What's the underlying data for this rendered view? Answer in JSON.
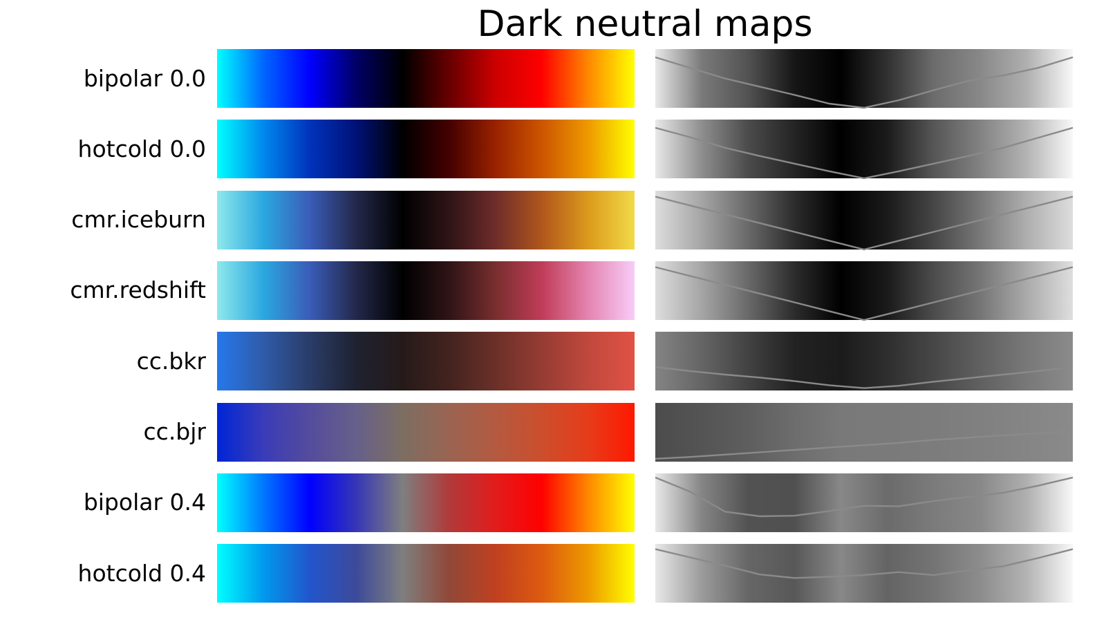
{
  "chart_data": {
    "type": "heatmap",
    "title": "Dark neutral maps",
    "maps": [
      {
        "name": "bipolar 0.0",
        "colors": [
          "#00ffff",
          "#0066ff",
          "#0000ff",
          "#000066",
          "#000000",
          "#660000",
          "#cc0000",
          "#ff0000",
          "#ff8800",
          "#ffff00"
        ],
        "lightness": [
          0.86,
          0.68,
          0.5,
          0.36,
          0.22,
          0.07,
          0.0,
          0.13,
          0.3,
          0.46,
          0.55,
          0.68,
          0.86
        ]
      },
      {
        "name": "hotcold 0.0",
        "colors": [
          "#00ffff",
          "#0088ee",
          "#0033bb",
          "#001177",
          "#000000",
          "#440000",
          "#992200",
          "#cc5500",
          "#ee9900",
          "#ffff00"
        ],
        "lightness": [
          0.86,
          0.7,
          0.52,
          0.38,
          0.25,
          0.12,
          0.0,
          0.12,
          0.25,
          0.38,
          0.52,
          0.69,
          0.86
        ]
      },
      {
        "name": "cmr.iceburn",
        "colors": [
          "#8ee8ec",
          "#2aa8e0",
          "#3a5cb8",
          "#23284a",
          "#000000",
          "#2e1416",
          "#6e2c2a",
          "#b0561c",
          "#dc9a1c",
          "#f2da48"
        ],
        "lightness": [
          0.9,
          0.75,
          0.6,
          0.45,
          0.3,
          0.15,
          0.0,
          0.15,
          0.3,
          0.45,
          0.6,
          0.75,
          0.9
        ]
      },
      {
        "name": "cmr.redshift",
        "colors": [
          "#8ee8ec",
          "#2aa8e0",
          "#3a5cb8",
          "#23284a",
          "#000000",
          "#2e1416",
          "#782e2e",
          "#c03c58",
          "#e484b0",
          "#f8ccf8"
        ],
        "lightness": [
          0.9,
          0.75,
          0.6,
          0.45,
          0.3,
          0.15,
          0.0,
          0.15,
          0.3,
          0.45,
          0.6,
          0.75,
          0.9
        ]
      },
      {
        "name": "cc.bkr",
        "colors": [
          "#2678ec",
          "#2f5ba8",
          "#2a3c68",
          "#1e2230",
          "#251a19",
          "#43231f",
          "#6b3028",
          "#953c33",
          "#c0483d",
          "#e15245"
        ],
        "lightness": [
          0.4,
          0.33,
          0.27,
          0.22,
          0.16,
          0.09,
          0.04,
          0.08,
          0.15,
          0.21,
          0.27,
          0.33,
          0.4
        ]
      },
      {
        "name": "cc.bjr",
        "colors": [
          "#0025d6",
          "#3a3cb8",
          "#544c9c",
          "#66608a",
          "#7d6e62",
          "#9a6452",
          "#b45a40",
          "#cc4e2c",
          "#e63c1a",
          "#ff1800"
        ],
        "lightness": [
          0.05,
          0.08,
          0.12,
          0.16,
          0.2,
          0.24,
          0.28,
          0.32,
          0.37,
          0.41,
          0.45,
          0.48,
          0.52
        ]
      },
      {
        "name": "bipolar 0.4",
        "colors": [
          "#00ffff",
          "#0077ff",
          "#0000ff",
          "#3636b6",
          "#7f7f7f",
          "#b03a3a",
          "#e21c1c",
          "#ff0000",
          "#ff8800",
          "#ffff00"
        ],
        "lightness": [
          0.93,
          0.69,
          0.35,
          0.27,
          0.28,
          0.36,
          0.45,
          0.44,
          0.53,
          0.6,
          0.67,
          0.79,
          0.93
        ]
      },
      {
        "name": "hotcold 0.4",
        "colors": [
          "#00ffff",
          "#0099ee",
          "#2255cc",
          "#3d4a9a",
          "#7f7f7f",
          "#904838",
          "#c04020",
          "#dd5a10",
          "#ee9900",
          "#ffff00"
        ],
        "lightness": [
          0.91,
          0.77,
          0.63,
          0.48,
          0.42,
          0.44,
          0.47,
          0.52,
          0.47,
          0.55,
          0.62,
          0.76,
          0.91
        ]
      }
    ]
  }
}
